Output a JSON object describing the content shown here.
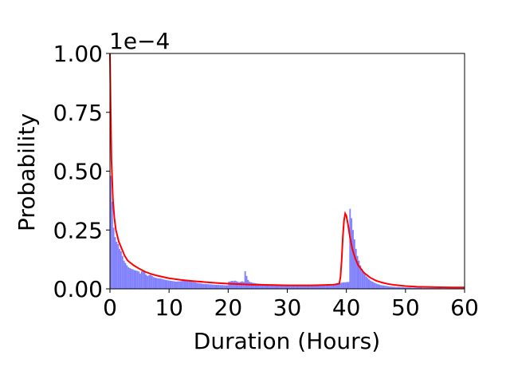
{
  "chart_data": {
    "type": "histogram",
    "xlabel": "Duration (Hours)",
    "ylabel": "Probability",
    "y_offset_label": "1e−4",
    "xlim": [
      0,
      60
    ],
    "ylim": [
      0,
      1.0
    ],
    "x_ticks": [
      0,
      10,
      20,
      30,
      40,
      50,
      60
    ],
    "x_tick_labels": [
      "0",
      "10",
      "20",
      "30",
      "40",
      "50",
      "60"
    ],
    "y_ticks": [
      0,
      0.25,
      0.5,
      0.75,
      1.0
    ],
    "y_tick_labels": [
      "0.00",
      "0.25",
      "0.50",
      "0.75",
      "1.00"
    ],
    "grid": false,
    "legend": "none",
    "histogram": {
      "color": "#8080ff",
      "bin_width": 0.25,
      "bin_start": 0,
      "values": [
        0.48,
        0.37,
        0.26,
        0.22,
        0.2,
        0.19,
        0.17,
        0.16,
        0.14,
        0.12,
        0.11,
        0.1,
        0.092,
        0.088,
        0.085,
        0.083,
        0.08,
        0.078,
        0.076,
        0.074,
        0.065,
        0.075,
        0.078,
        0.072,
        0.06,
        0.055,
        0.058,
        0.06,
        0.055,
        0.05,
        0.048,
        0.046,
        0.045,
        0.044,
        0.043,
        0.042,
        0.04,
        0.038,
        0.037,
        0.036,
        0.035,
        0.034,
        0.033,
        0.032,
        0.031,
        0.031,
        0.032,
        0.032,
        0.033,
        0.034,
        0.035,
        0.036,
        0.035,
        0.034,
        0.032,
        0.03,
        0.029,
        0.028,
        0.026,
        0.025,
        0.024,
        0.023,
        0.022,
        0.021,
        0.021,
        0.02,
        0.02,
        0.019,
        0.019,
        0.018,
        0.018,
        0.017,
        0.017,
        0.017,
        0.016,
        0.016,
        0.016,
        0.015,
        0.015,
        0.015,
        0.03,
        0.032,
        0.034,
        0.033,
        0.035,
        0.033,
        0.03,
        0.028,
        0.03,
        0.032,
        0.03,
        0.075,
        0.055,
        0.038,
        0.03,
        0.028,
        0.026,
        0.025,
        0.024,
        0.023,
        0.022,
        0.022,
        0.021,
        0.021,
        0.02,
        0.02,
        0.02,
        0.019,
        0.019,
        0.019,
        0.019,
        0.018,
        0.018,
        0.018,
        0.018,
        0.017,
        0.017,
        0.017,
        0.017,
        0.017,
        0.016,
        0.016,
        0.016,
        0.016,
        0.016,
        0.016,
        0.016,
        0.016,
        0.015,
        0.015,
        0.015,
        0.015,
        0.015,
        0.015,
        0.015,
        0.015,
        0.015,
        0.015,
        0.015,
        0.015,
        0.015,
        0.015,
        0.015,
        0.015,
        0.015,
        0.015,
        0.016,
        0.017,
        0.018,
        0.019,
        0.02,
        0.021,
        0.022,
        0.023,
        0.024,
        0.025,
        0.026,
        0.027,
        0.028,
        0.028,
        0.029,
        0.029,
        0.34,
        0.3,
        0.25,
        0.21,
        0.17,
        0.14,
        0.12,
        0.1,
        0.085,
        0.072,
        0.062,
        0.053,
        0.046,
        0.04,
        0.035,
        0.031,
        0.028,
        0.025,
        0.022,
        0.02,
        0.018,
        0.016,
        0.015,
        0.014,
        0.013,
        0.012,
        0.011,
        0.01,
        0.01,
        0.009,
        0.009,
        0.008,
        0.008,
        0.008,
        0.007,
        0.007,
        0.007,
        0.006,
        0.006,
        0.006,
        0.006,
        0.006,
        0.005,
        0.005,
        0.005,
        0.005,
        0.005,
        0.005,
        0.005,
        0.004,
        0.004,
        0.004,
        0.004,
        0.004,
        0.004,
        0.004,
        0.004,
        0.004,
        0.004,
        0.004,
        0.004,
        0.004,
        0.003,
        0.003,
        0.003,
        0.003,
        0.003,
        0.003,
        0.003,
        0.003,
        0.003,
        0.003,
        0.003,
        0.003,
        0.003,
        0.003,
        0.003,
        0.003,
        0.003,
        0.003
      ]
    },
    "fit_curve": {
      "color": "#ff0000",
      "x": [
        0,
        0.1,
        0.25,
        0.5,
        0.75,
        1,
        1.5,
        2,
        2.5,
        3,
        4,
        5,
        6,
        7,
        8,
        10,
        12,
        14,
        16,
        18,
        20,
        22,
        24,
        26,
        28,
        30,
        32,
        34,
        36,
        38,
        38.8,
        39.0,
        39.2,
        39.4,
        39.6,
        39.8,
        40.0,
        40.3,
        40.6,
        41,
        41.5,
        42,
        43,
        44,
        45,
        46,
        47,
        48,
        50,
        52,
        55,
        58,
        60
      ],
      "y": [
        1.0,
        0.8,
        0.55,
        0.38,
        0.3,
        0.25,
        0.2,
        0.17,
        0.14,
        0.12,
        0.1,
        0.085,
        0.072,
        0.063,
        0.056,
        0.045,
        0.038,
        0.033,
        0.029,
        0.025,
        0.022,
        0.02,
        0.018,
        0.017,
        0.016,
        0.015,
        0.015,
        0.015,
        0.016,
        0.018,
        0.022,
        0.05,
        0.12,
        0.22,
        0.29,
        0.32,
        0.31,
        0.27,
        0.22,
        0.17,
        0.13,
        0.1,
        0.068,
        0.048,
        0.035,
        0.027,
        0.021,
        0.017,
        0.012,
        0.009,
        0.007,
        0.006,
        0.006
      ]
    }
  }
}
